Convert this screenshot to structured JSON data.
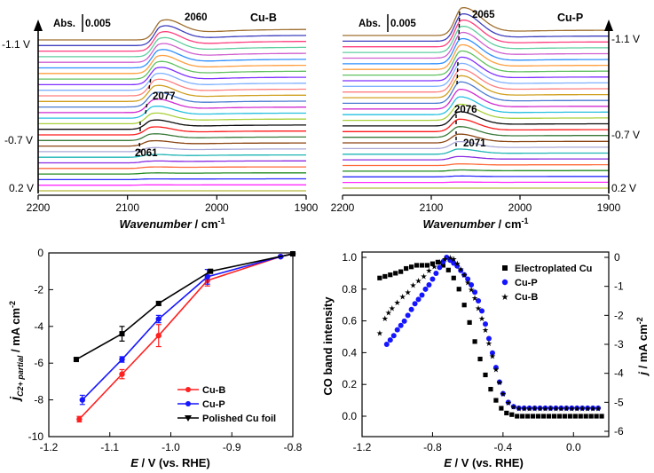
{
  "chart_data": [
    {
      "type": "line",
      "panel": "top-left",
      "tag": "Cu-B",
      "scale_bar_label": "Abs.",
      "scale_bar_value": "0.005",
      "xlabel_italic": "Wavenumber",
      "xlabel_unit": " / cm",
      "xlabel_sup": "-1",
      "xlim": [
        2200,
        1900
      ],
      "xticks": [
        "2200",
        "2100",
        "2000",
        "1900"
      ],
      "potential_labels": [
        "-1.1 V",
        "-0.7 V",
        "0.2 V"
      ],
      "peak_labels": [
        "2060",
        "2077",
        "2061"
      ],
      "series_count": 28,
      "peak_position_high_potential": 2060,
      "peak_position_low_potential": 2077
    },
    {
      "type": "line",
      "panel": "top-right",
      "tag": "Cu-P",
      "scale_bar_label": "Abs.",
      "scale_bar_value": "0.005",
      "xlabel_italic": "Wavenumber",
      "xlabel_unit": " / cm",
      "xlabel_sup": "-1",
      "xlim": [
        2200,
        1900
      ],
      "xticks": [
        "2200",
        "2100",
        "2000",
        "1900"
      ],
      "potential_labels": [
        "-1.1 V",
        "-0.7 V",
        "0.2 V"
      ],
      "peak_labels": [
        "2065",
        "2076",
        "2071"
      ],
      "series_count": 28,
      "peak_position_high_potential": 2065,
      "peak_position_low_potential": 2076
    },
    {
      "type": "line",
      "panel": "bottom-left",
      "ylabel_j": "j",
      "ylabel_sub": "C2+ partial",
      "ylabel_unit": " / mA cm",
      "ylabel_sup": "-2",
      "xlabel_italic": "E",
      "xlabel_rest": " / V (vs. RHE)",
      "xlim": [
        -1.2,
        -0.8
      ],
      "ylim": [
        -10,
        0
      ],
      "xticks": [
        "-1.2",
        "-1.1",
        "-1.0",
        "-0.9",
        "-0.8"
      ],
      "yticks": [
        "0",
        "-2",
        "-4",
        "-6",
        "-8",
        "-10"
      ],
      "series": [
        {
          "name": "Cu-B",
          "color": "#ff2020",
          "marker": "circle",
          "x": [
            -1.15,
            -1.08,
            -1.02,
            -0.94,
            -0.82,
            -0.8
          ],
          "y": [
            -9.05,
            -6.6,
            -4.5,
            -1.5,
            -0.2,
            -0.05
          ],
          "err": [
            0.15,
            0.25,
            0.6,
            0.3,
            0.05,
            0.05
          ]
        },
        {
          "name": "Cu-P",
          "color": "#1515ff",
          "marker": "circle",
          "x": [
            -1.145,
            -1.08,
            -1.02,
            -0.94,
            -0.82,
            -0.8
          ],
          "y": [
            -8.0,
            -5.8,
            -3.6,
            -1.3,
            -0.2,
            -0.05
          ],
          "err": [
            0.25,
            0.15,
            0.2,
            0.4,
            0.05,
            0.05
          ]
        },
        {
          "name": "Polished Cu foil",
          "color": "#000000",
          "marker": "square",
          "x": [
            -1.155,
            -1.08,
            -1.02,
            -0.935,
            -0.8
          ],
          "y": [
            -5.8,
            -4.4,
            -2.75,
            -1.0,
            -0.05
          ],
          "err": [
            0.08,
            0.4,
            0.1,
            0.1,
            0.05
          ]
        }
      ]
    },
    {
      "type": "scatter",
      "panel": "bottom-right",
      "ylabel": "CO band intensity",
      "ylabel_right_italic": "j",
      "ylabel_right_unit": " / mA cm",
      "ylabel_right_sup": "-2",
      "xlabel_italic": "E",
      "xlabel_rest": " / V (vs. RHE)",
      "xlim": [
        -1.2,
        0.2
      ],
      "ylim": [
        0,
        1.05
      ],
      "y2lim": [
        -6,
        0.2
      ],
      "xticks": [
        "-1.2",
        "-0.8",
        "-0.4",
        "0.0"
      ],
      "yticks": [
        "0.0",
        "0.2",
        "0.4",
        "0.6",
        "0.8",
        "1.0"
      ],
      "y2ticks": [
        "0",
        "-1",
        "-2",
        "-3",
        "-4",
        "-5",
        "-6"
      ],
      "series": [
        {
          "name": "Electroplated Cu",
          "color": "#000000",
          "marker": "square",
          "x": [
            -1.1,
            -1.07,
            -1.04,
            -1.01,
            -0.98,
            -0.95,
            -0.92,
            -0.89,
            -0.86,
            -0.83,
            -0.8,
            -0.77,
            -0.74,
            -0.71,
            -0.68,
            -0.65,
            -0.62,
            -0.59,
            -0.56,
            -0.53,
            -0.5,
            -0.47,
            -0.44,
            -0.41,
            -0.38,
            -0.35,
            -0.32,
            -0.29,
            -0.26,
            -0.23,
            -0.2,
            -0.17,
            -0.14,
            -0.11,
            -0.08,
            -0.05,
            -0.02,
            0.01,
            0.04,
            0.07,
            0.1,
            0.13,
            0.16
          ],
          "y": [
            0.87,
            0.88,
            0.89,
            0.9,
            0.91,
            0.93,
            0.94,
            0.95,
            0.95,
            0.95,
            0.96,
            0.97,
            0.95,
            0.92,
            0.87,
            0.8,
            0.7,
            0.59,
            0.47,
            0.36,
            0.26,
            0.17,
            0.1,
            0.05,
            0.02,
            0.01,
            0.0,
            0.0,
            0.0,
            0.0,
            0.0,
            0.0,
            0.0,
            0.0,
            0.0,
            0.0,
            0.0,
            0.0,
            0.0,
            0.0,
            0.0,
            0.0,
            0.0
          ]
        },
        {
          "name": "Cu-P",
          "color": "#1515ff",
          "marker": "circle",
          "x": [
            -1.06,
            -1.04,
            -1.02,
            -1.0,
            -0.98,
            -0.96,
            -0.94,
            -0.92,
            -0.9,
            -0.88,
            -0.86,
            -0.84,
            -0.82,
            -0.8,
            -0.78,
            -0.76,
            -0.74,
            -0.72,
            -0.7,
            -0.68,
            -0.66,
            -0.64,
            -0.62,
            -0.6,
            -0.58,
            -0.56,
            -0.54,
            -0.52,
            -0.5,
            -0.48,
            -0.46,
            -0.44,
            -0.42,
            -0.4,
            -0.37,
            -0.34,
            -0.31,
            -0.28,
            -0.25,
            -0.22,
            -0.19,
            -0.16,
            -0.13,
            -0.1,
            -0.07,
            -0.04,
            -0.01,
            0.02,
            0.05,
            0.08,
            0.11,
            0.14
          ],
          "y": [
            -3.0,
            -2.85,
            -2.7,
            -2.5,
            -2.35,
            -2.2,
            -2.0,
            -1.8,
            -1.6,
            -1.45,
            -1.3,
            -1.1,
            -0.95,
            -0.75,
            -0.55,
            -0.35,
            -0.15,
            0.0,
            -0.1,
            -0.2,
            -0.3,
            -0.45,
            -0.6,
            -0.75,
            -0.95,
            -1.2,
            -1.5,
            -1.85,
            -2.3,
            -2.8,
            -3.3,
            -3.8,
            -4.3,
            -4.7,
            -5.0,
            -5.15,
            -5.2,
            -5.2,
            -5.2,
            -5.2,
            -5.2,
            -5.2,
            -5.2,
            -5.2,
            -5.2,
            -5.2,
            -5.2,
            -5.2,
            -5.2,
            -5.2,
            -5.2,
            -5.2
          ]
        },
        {
          "name": "Cu-B",
          "color": "#ff2020",
          "marker": "star",
          "x": [
            -1.1,
            -1.07,
            -1.05,
            -1.03,
            -1.0,
            -0.97,
            -0.94,
            -0.91,
            -0.88,
            -0.85,
            -0.82,
            -0.79,
            -0.76,
            -0.73,
            -0.7,
            -0.68,
            -0.66,
            -0.64,
            -0.62,
            -0.6,
            -0.58,
            -0.56,
            -0.54,
            -0.52,
            -0.5,
            -0.48,
            -0.46,
            -0.44,
            -0.42,
            -0.4,
            -0.37,
            -0.34,
            -0.31,
            -0.28,
            -0.25,
            -0.22,
            -0.19,
            -0.16,
            -0.13,
            -0.1,
            -0.07,
            -0.04,
            -0.01,
            0.02,
            0.05,
            0.08,
            0.11,
            0.14
          ],
          "y": [
            -2.6,
            -2.1,
            -1.9,
            -1.75,
            -1.55,
            -1.35,
            -1.2,
            -0.95,
            -0.8,
            -0.65,
            -0.45,
            -0.3,
            -0.15,
            -0.05,
            0.0,
            -0.05,
            -0.2,
            -0.4,
            -0.6,
            -0.85,
            -1.1,
            -1.4,
            -1.75,
            -2.1,
            -2.5,
            -2.95,
            -3.4,
            -3.85,
            -4.3,
            -4.7,
            -5.0,
            -5.15,
            -5.2,
            -5.2,
            -5.2,
            -5.2,
            -5.2,
            -5.2,
            -5.2,
            -5.2,
            -5.2,
            -5.2,
            -5.2,
            -5.2,
            -5.2,
            -5.2,
            -5.2,
            -5.2
          ]
        }
      ],
      "intensity_axis": "left",
      "current_axis": "right"
    }
  ]
}
